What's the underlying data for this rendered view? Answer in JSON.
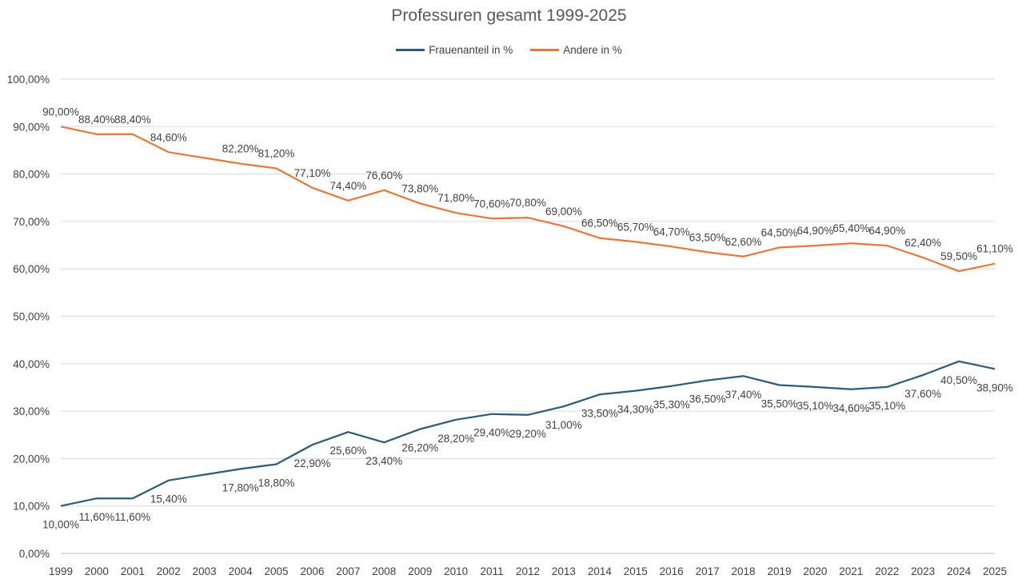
{
  "chart_data": {
    "type": "line",
    "title": "Professuren gesamt 1999-2025",
    "xlabel": "",
    "ylabel": "",
    "ylim": [
      0,
      100
    ],
    "y_ticks": [
      "0,00%",
      "10,00%",
      "20,00%",
      "30,00%",
      "40,00%",
      "50,00%",
      "60,00%",
      "70,00%",
      "80,00%",
      "90,00%",
      "100,00%"
    ],
    "grid": true,
    "legend_position": "top-center",
    "categories": [
      "1999",
      "2000",
      "2001",
      "2002",
      "2003",
      "2004",
      "2005",
      "2006",
      "2007",
      "2008",
      "2009",
      "2010",
      "2011",
      "2012",
      "2013",
      "2014",
      "2015",
      "2016",
      "2017",
      "2018",
      "2019",
      "2020",
      "2021",
      "2022",
      "2023",
      "2024",
      "2025"
    ],
    "series": [
      {
        "name": "Frauenanteil in %",
        "color": "#2e5b7a",
        "values": [
          10.0,
          11.6,
          11.6,
          15.4,
          null,
          17.8,
          18.8,
          22.9,
          25.6,
          23.4,
          26.2,
          28.2,
          29.4,
          29.2,
          31.0,
          33.5,
          34.3,
          35.3,
          36.5,
          37.4,
          35.5,
          35.1,
          34.6,
          35.1,
          37.6,
          40.5,
          38.9
        ],
        "labels": [
          "10,00%",
          "11,60%",
          "11,60%",
          "15,40%",
          null,
          "17,80%",
          "18,80%",
          "22,90%",
          "25,60%",
          "23,40%",
          "26,20%",
          "28,20%",
          "29,40%",
          "29,20%",
          "31,00%",
          "33,50%",
          "34,30%",
          "35,30%",
          "36,50%",
          "37,40%",
          "35,50%",
          "35,10%",
          "34,60%",
          "35,10%",
          "37,60%",
          "40,50%",
          "38,90%"
        ]
      },
      {
        "name": "Andere in %",
        "color": "#e07b3f",
        "values": [
          90.0,
          88.4,
          88.4,
          84.6,
          null,
          82.2,
          81.2,
          77.1,
          74.4,
          76.6,
          73.8,
          71.8,
          70.6,
          70.8,
          69.0,
          66.5,
          65.7,
          64.7,
          63.5,
          62.6,
          64.5,
          64.9,
          65.4,
          64.9,
          62.4,
          59.5,
          61.1
        ],
        "labels": [
          "90,00%",
          "88,40%",
          "88,40%",
          "84,60%",
          null,
          "82,20%",
          "81,20%",
          "77,10%",
          "74,40%",
          "76,60%",
          "73,80%",
          "71,80%",
          "70,60%",
          "70,80%",
          "69,00%",
          "66,50%",
          "65,70%",
          "64,70%",
          "63,50%",
          "62,60%",
          "64,50%",
          "64,90%",
          "65,40%",
          "64,90%",
          "62,40%",
          "59,50%",
          "61,10%"
        ]
      }
    ]
  }
}
